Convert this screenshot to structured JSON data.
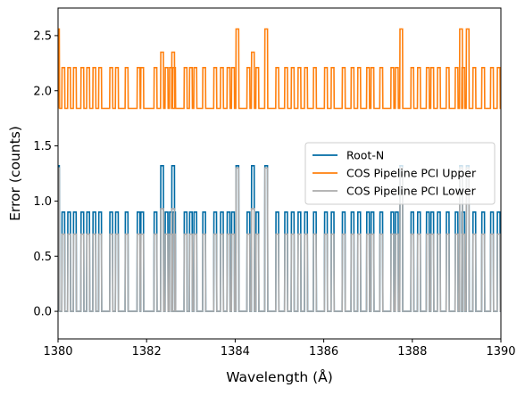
{
  "chart_data": {
    "type": "line",
    "title": "",
    "xlabel": "Wavelength (Å)",
    "ylabel": "Error (counts)",
    "xlim": [
      1380,
      1390
    ],
    "ylim": [
      -0.25,
      2.75
    ],
    "x_ticks": [
      1380,
      1382,
      1384,
      1386,
      1388,
      1390
    ],
    "x_tick_labels": [
      "1380",
      "1382",
      "1384",
      "1386",
      "1388",
      "1390"
    ],
    "y_ticks": [
      0.0,
      0.5,
      1.0,
      1.5,
      2.0,
      2.5
    ],
    "y_tick_labels": [
      "0.0",
      "0.5",
      "1.0",
      "1.5",
      "2.0",
      "2.5"
    ],
    "grid": false,
    "legend_position": "center-right",
    "series": [
      {
        "name": "Root-N",
        "color": "#006ba4",
        "baseline": 0.0,
        "level_one_count": 0.9,
        "level_two_counts": 1.32,
        "wavelengths_one_count": [
          1380.12,
          1380.25,
          1380.38,
          1380.55,
          1380.68,
          1380.82,
          1380.95,
          1381.2,
          1381.33,
          1381.55,
          1381.82,
          1381.9,
          1382.2,
          1382.45,
          1382.55,
          1382.62,
          1382.88,
          1383.0,
          1383.1,
          1383.3,
          1383.55,
          1383.7,
          1383.85,
          1383.95,
          1384.3,
          1384.5,
          1384.95,
          1385.15,
          1385.3,
          1385.45,
          1385.6,
          1385.8,
          1386.05,
          1386.2,
          1386.45,
          1386.65,
          1386.8,
          1387.0,
          1387.1,
          1387.3,
          1387.55,
          1387.65,
          1388.0,
          1388.15,
          1388.35,
          1388.45,
          1388.6,
          1388.8,
          1389.0,
          1389.15,
          1389.4,
          1389.6,
          1389.8,
          1389.95
        ],
        "wavelengths_two_counts": [
          1380.0,
          1382.35,
          1382.6,
          1384.05,
          1384.4,
          1384.7,
          1387.75,
          1389.1,
          1389.25
        ]
      },
      {
        "name": "COS Pipeline PCI Upper",
        "color": "#ff800e",
        "baseline": 1.84,
        "level_one_count": 2.21,
        "level_two_counts": 2.56,
        "level_mid": 2.35,
        "wavelengths_one_count": [
          1380.12,
          1380.25,
          1380.38,
          1380.55,
          1380.68,
          1380.82,
          1380.95,
          1381.2,
          1381.33,
          1381.55,
          1381.82,
          1381.9,
          1382.2,
          1382.45,
          1382.55,
          1382.62,
          1382.88,
          1383.0,
          1383.1,
          1383.3,
          1383.55,
          1383.7,
          1383.85,
          1383.95,
          1384.3,
          1384.5,
          1384.95,
          1385.15,
          1385.3,
          1385.45,
          1385.6,
          1385.8,
          1386.05,
          1386.2,
          1386.45,
          1386.65,
          1386.8,
          1387.0,
          1387.1,
          1387.3,
          1387.55,
          1387.65,
          1388.0,
          1388.15,
          1388.35,
          1388.45,
          1388.6,
          1388.8,
          1389.0,
          1389.15,
          1389.4,
          1389.6,
          1389.8,
          1389.95
        ],
        "wavelengths_two_counts": [
          1380.0,
          1384.05,
          1384.7,
          1387.75,
          1389.1,
          1389.25
        ],
        "wavelengths_mid": [
          1382.35,
          1382.6,
          1384.4
        ]
      },
      {
        "name": "COS Pipeline PCI Lower",
        "color": "#ababab",
        "baseline": 0.0,
        "level_one_count": 0.7,
        "level_two_counts": 1.3,
        "level_mid": 0.93,
        "wavelengths_one_count": [
          1380.12,
          1380.25,
          1380.38,
          1380.55,
          1380.68,
          1380.82,
          1380.95,
          1381.2,
          1381.33,
          1381.55,
          1381.82,
          1381.9,
          1382.2,
          1382.45,
          1382.55,
          1382.62,
          1382.88,
          1383.0,
          1383.1,
          1383.3,
          1383.55,
          1383.7,
          1383.85,
          1383.95,
          1384.3,
          1384.5,
          1384.95,
          1385.15,
          1385.3,
          1385.45,
          1385.6,
          1385.8,
          1386.05,
          1386.2,
          1386.45,
          1386.65,
          1386.8,
          1387.0,
          1387.1,
          1387.3,
          1387.55,
          1387.65,
          1388.0,
          1388.15,
          1388.35,
          1388.45,
          1388.6,
          1388.8,
          1389.0,
          1389.15,
          1389.4,
          1389.6,
          1389.8,
          1389.95
        ],
        "wavelengths_two_counts": [
          1380.0,
          1384.05,
          1384.7,
          1387.75,
          1389.1,
          1389.25
        ],
        "wavelengths_mid": [
          1382.35,
          1382.6,
          1384.4
        ]
      }
    ]
  }
}
